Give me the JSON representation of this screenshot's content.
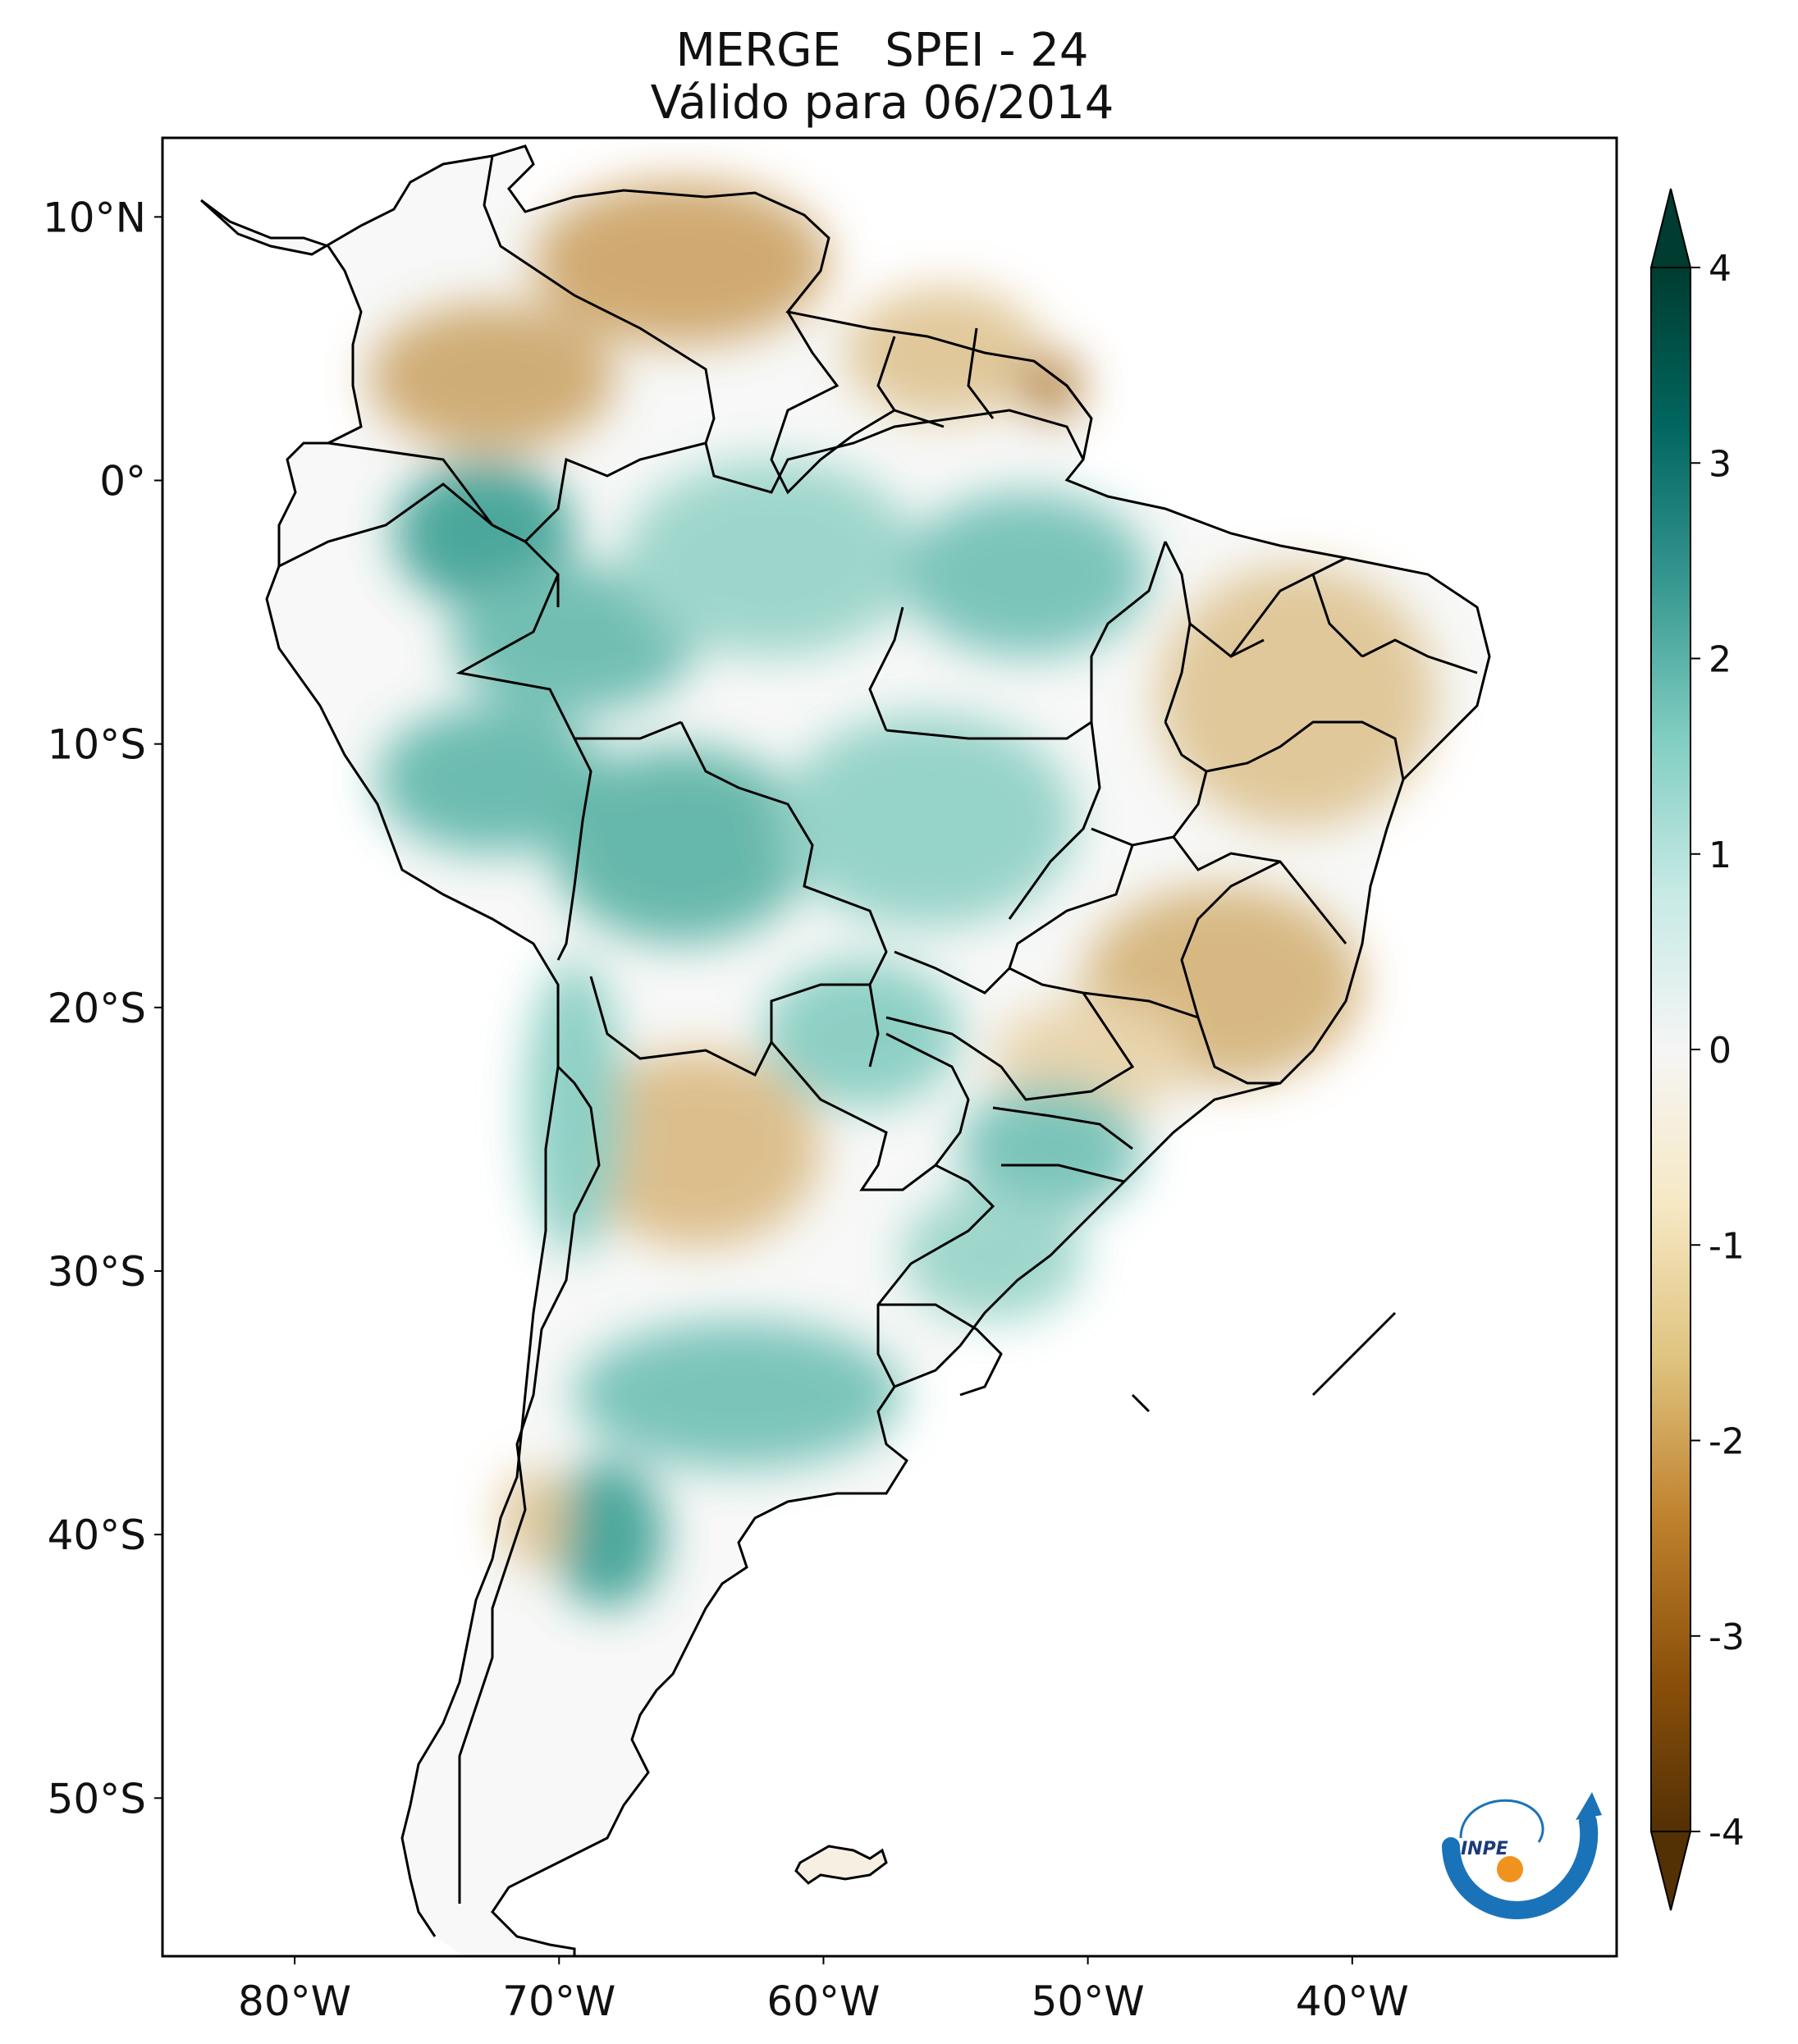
{
  "title": {
    "line1": "MERGE   SPEI - 24",
    "line2": "Válido para 06/2014"
  },
  "map": {
    "lat_ticks": [
      {
        "value": 10,
        "label": "10°N"
      },
      {
        "value": 0,
        "label": "0°"
      },
      {
        "value": -10,
        "label": "10°S"
      },
      {
        "value": -20,
        "label": "20°S"
      },
      {
        "value": -30,
        "label": "30°S"
      },
      {
        "value": -40,
        "label": "40°S"
      },
      {
        "value": -50,
        "label": "50°S"
      }
    ],
    "lon_ticks": [
      {
        "value": -80,
        "label": "80°W"
      },
      {
        "value": -70,
        "label": "70°W"
      },
      {
        "value": -60,
        "label": "60°W"
      },
      {
        "value": -50,
        "label": "50°W"
      },
      {
        "value": -40,
        "label": "40°W"
      }
    ],
    "lon_range": [
      -85,
      -30
    ],
    "lat_range": [
      -56,
      13
    ]
  },
  "colorbar": {
    "ticks": [
      {
        "value": 4,
        "label": "4"
      },
      {
        "value": 3,
        "label": "3"
      },
      {
        "value": 2,
        "label": "2"
      },
      {
        "value": 1,
        "label": "1"
      },
      {
        "value": 0,
        "label": "0"
      },
      {
        "value": -1,
        "label": "-1"
      },
      {
        "value": -2,
        "label": "-2"
      },
      {
        "value": -3,
        "label": "-3"
      },
      {
        "value": -4,
        "label": "-4"
      }
    ],
    "range": [
      -4,
      4
    ],
    "colors_low_to_high": [
      "#543005",
      "#8c510a",
      "#bf812d",
      "#dfc27d",
      "#f6e8c3",
      "#f5f5f5",
      "#c7eae5",
      "#80cdc1",
      "#35978f",
      "#01665e",
      "#003c30"
    ],
    "extend": "both"
  },
  "logo": {
    "text": "INPE",
    "arc_color": "#1a73b8",
    "dot_color": "#f0931e"
  },
  "colors": {
    "frame": "#000000",
    "land_dry": "#d8b57a",
    "land_wet": "#5cb5a8",
    "background": "#ffffff"
  }
}
